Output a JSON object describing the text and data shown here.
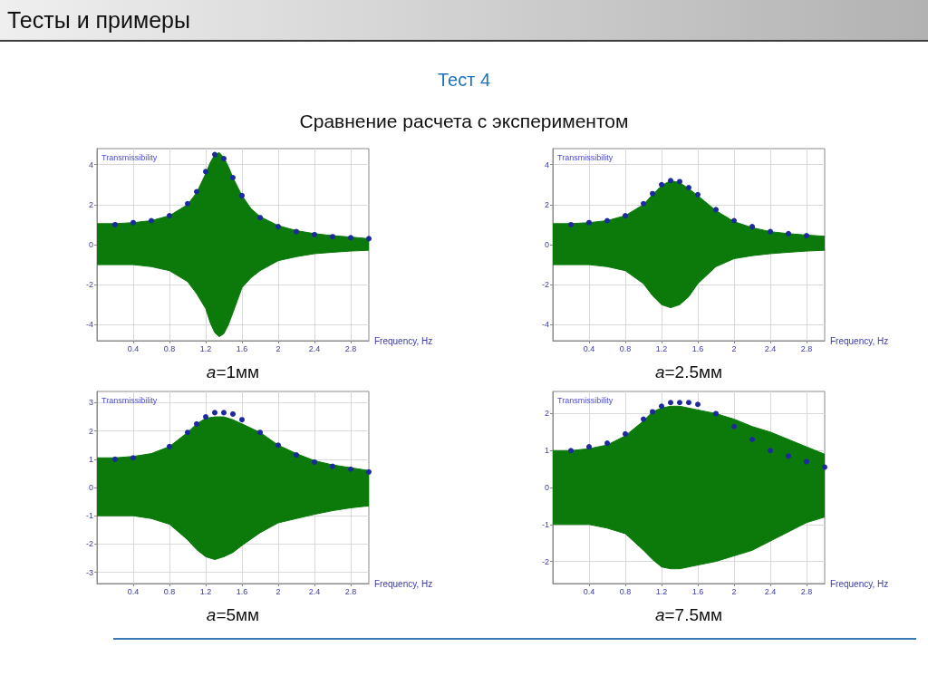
{
  "chart_data": [
    {
      "type": "other",
      "title": "Тесты и примеры",
      "subtitle": "Тест 4",
      "annotations": [
        "Сравнение расчета с экспериментом"
      ]
    },
    {
      "type": "area",
      "title": "a=1мм",
      "xlabel": "Frequency, Hz",
      "ylabel": "Transmissibility",
      "x": [
        0,
        0.2,
        0.4,
        0.6,
        0.8,
        1.0,
        1.1,
        1.2,
        1.25,
        1.3,
        1.35,
        1.4,
        1.45,
        1.5,
        1.6,
        1.7,
        1.8,
        2.0,
        2.2,
        2.4,
        2.6,
        2.8,
        3.0
      ],
      "series": [
        {
          "type": "area",
          "color": "#0b7a0b",
          "values": [
            1.05,
            1.05,
            1.1,
            1.2,
            1.45,
            2.0,
            2.6,
            3.55,
            4.1,
            4.5,
            4.6,
            4.35,
            3.9,
            3.35,
            2.45,
            1.8,
            1.4,
            0.95,
            0.7,
            0.55,
            0.45,
            0.38,
            0.3
          ]
        },
        {
          "type": "area",
          "color": "#0b7a0b",
          "values": [
            -1.0,
            -1.0,
            -1.0,
            -1.1,
            -1.3,
            -1.85,
            -2.45,
            -3.2,
            -3.9,
            -4.4,
            -4.6,
            -4.45,
            -4.0,
            -3.4,
            -2.15,
            -1.65,
            -1.3,
            -0.8,
            -0.6,
            -0.45,
            -0.38,
            -0.32,
            -0.28
          ]
        },
        {
          "type": "scatter",
          "color": "#1c2a9c",
          "marker": "circle",
          "x": [
            0.2,
            0.4,
            0.6,
            0.8,
            1.0,
            1.1,
            1.2,
            1.3,
            1.4,
            1.5,
            1.6,
            1.8,
            2.0,
            2.2,
            2.4,
            2.6,
            2.8,
            3.0
          ],
          "values": [
            1.0,
            1.1,
            1.2,
            1.45,
            2.05,
            2.65,
            3.65,
            4.5,
            4.3,
            3.35,
            2.45,
            1.35,
            0.9,
            0.65,
            0.5,
            0.4,
            0.35,
            0.3
          ]
        }
      ],
      "xlim": [
        0,
        3
      ],
      "xticks": [
        0.4,
        0.8,
        1.2,
        1.6,
        2,
        2.4,
        2.8
      ],
      "ylim": [
        -4.8,
        4.8
      ],
      "yticks": [
        -4,
        -2,
        0,
        2,
        4
      ],
      "grid": true
    },
    {
      "type": "area",
      "title": "a=2.5мм",
      "xlabel": "Frequency, Hz",
      "ylabel": "Transmissibility",
      "x": [
        0,
        0.2,
        0.4,
        0.6,
        0.8,
        1.0,
        1.1,
        1.2,
        1.3,
        1.4,
        1.5,
        1.6,
        1.8,
        2.0,
        2.2,
        2.4,
        2.6,
        2.8,
        3.0
      ],
      "series": [
        {
          "type": "area",
          "color": "#0b7a0b",
          "values": [
            1.05,
            1.05,
            1.1,
            1.2,
            1.45,
            2.0,
            2.5,
            2.95,
            3.2,
            3.1,
            2.8,
            2.45,
            1.7,
            1.15,
            0.85,
            0.65,
            0.55,
            0.48,
            0.42
          ]
        },
        {
          "type": "area",
          "color": "#0b7a0b",
          "values": [
            -1.0,
            -1.0,
            -1.0,
            -1.1,
            -1.3,
            -1.95,
            -2.55,
            -3.0,
            -3.15,
            -3.0,
            -2.6,
            -1.95,
            -1.1,
            -0.7,
            -0.55,
            -0.45,
            -0.38,
            -0.32,
            -0.28
          ]
        },
        {
          "type": "scatter",
          "color": "#1c2a9c",
          "marker": "circle",
          "x": [
            0.2,
            0.4,
            0.6,
            0.8,
            1.0,
            1.1,
            1.2,
            1.3,
            1.4,
            1.5,
            1.6,
            1.8,
            2.0,
            2.2,
            2.4,
            2.6,
            2.8
          ],
          "values": [
            1.0,
            1.1,
            1.2,
            1.45,
            2.05,
            2.55,
            3.0,
            3.2,
            3.15,
            2.85,
            2.5,
            1.75,
            1.2,
            0.9,
            0.65,
            0.55,
            0.45
          ]
        }
      ],
      "xlim": [
        0,
        3
      ],
      "xticks": [
        0.4,
        0.8,
        1.2,
        1.6,
        2,
        2.4,
        2.8
      ],
      "ylim": [
        -4.8,
        4.8
      ],
      "yticks": [
        -4,
        -2,
        0,
        2,
        4
      ],
      "grid": true
    },
    {
      "type": "area",
      "title": "a=5мм",
      "xlabel": "Frequency, Hz",
      "ylabel": "Transmissibility",
      "x": [
        0,
        0.2,
        0.4,
        0.6,
        0.8,
        1.0,
        1.1,
        1.2,
        1.3,
        1.4,
        1.5,
        1.6,
        1.8,
        2.0,
        2.2,
        2.4,
        2.6,
        2.8,
        3.0
      ],
      "series": [
        {
          "type": "area",
          "color": "#0b7a0b",
          "values": [
            1.05,
            1.05,
            1.1,
            1.2,
            1.45,
            1.95,
            2.25,
            2.45,
            2.5,
            2.5,
            2.4,
            2.25,
            1.95,
            1.5,
            1.2,
            0.95,
            0.8,
            0.7,
            0.6
          ]
        },
        {
          "type": "area",
          "color": "#0b7a0b",
          "values": [
            -1.0,
            -1.0,
            -1.0,
            -1.1,
            -1.3,
            -1.85,
            -2.2,
            -2.45,
            -2.55,
            -2.45,
            -2.3,
            -2.05,
            -1.6,
            -1.25,
            -1.1,
            -0.95,
            -0.82,
            -0.72,
            -0.65
          ]
        },
        {
          "type": "scatter",
          "color": "#1c2a9c",
          "marker": "circle",
          "x": [
            0.2,
            0.4,
            0.8,
            1.0,
            1.1,
            1.2,
            1.3,
            1.4,
            1.5,
            1.6,
            1.8,
            2.0,
            2.2,
            2.4,
            2.6,
            2.8,
            3.0
          ],
          "values": [
            1.0,
            1.05,
            1.45,
            1.95,
            2.25,
            2.5,
            2.65,
            2.65,
            2.6,
            2.4,
            1.95,
            1.5,
            1.15,
            0.9,
            0.75,
            0.65,
            0.55
          ]
        }
      ],
      "xlim": [
        0,
        3
      ],
      "xticks": [
        0.4,
        0.8,
        1.2,
        1.6,
        2,
        2.4,
        2.8
      ],
      "ylim": [
        -3.4,
        3.4
      ],
      "yticks": [
        -3,
        -2,
        -1,
        0,
        1,
        2,
        3
      ],
      "grid": true
    },
    {
      "type": "area",
      "title": "a=7.5мм",
      "xlabel": "Frequency, Hz",
      "ylabel": "Transmissibility",
      "x": [
        0,
        0.2,
        0.4,
        0.6,
        0.8,
        1.0,
        1.1,
        1.2,
        1.3,
        1.4,
        1.5,
        1.6,
        1.8,
        2.0,
        2.2,
        2.4,
        2.6,
        2.8,
        3.0
      ],
      "series": [
        {
          "type": "area",
          "color": "#0b7a0b",
          "values": [
            1.0,
            1.0,
            1.05,
            1.15,
            1.4,
            1.8,
            2.05,
            2.15,
            2.2,
            2.2,
            2.15,
            2.1,
            2.0,
            1.85,
            1.65,
            1.5,
            1.3,
            1.1,
            0.9
          ]
        },
        {
          "type": "area",
          "color": "#0b7a0b",
          "values": [
            -1.0,
            -1.0,
            -1.0,
            -1.1,
            -1.25,
            -1.7,
            -1.95,
            -2.15,
            -2.2,
            -2.2,
            -2.15,
            -2.1,
            -2.0,
            -1.85,
            -1.7,
            -1.45,
            -1.2,
            -0.95,
            -0.8
          ]
        },
        {
          "type": "scatter",
          "color": "#1c2a9c",
          "marker": "circle",
          "x": [
            0.2,
            0.4,
            0.6,
            0.8,
            1.0,
            1.1,
            1.2,
            1.3,
            1.4,
            1.5,
            1.6,
            1.8,
            2.0,
            2.2,
            2.4,
            2.6,
            2.8,
            3.0
          ],
          "values": [
            1.0,
            1.1,
            1.2,
            1.45,
            1.85,
            2.05,
            2.2,
            2.3,
            2.3,
            2.3,
            2.25,
            2.0,
            1.65,
            1.3,
            1.0,
            0.85,
            0.7,
            0.55
          ]
        }
      ],
      "xlim": [
        0,
        3
      ],
      "xticks": [
        0.4,
        0.8,
        1.2,
        1.6,
        2,
        2.4,
        2.8
      ],
      "ylim": [
        -2.6,
        2.6
      ],
      "yticks": [
        -2,
        -1,
        0,
        1,
        2
      ],
      "grid": true
    }
  ]
}
